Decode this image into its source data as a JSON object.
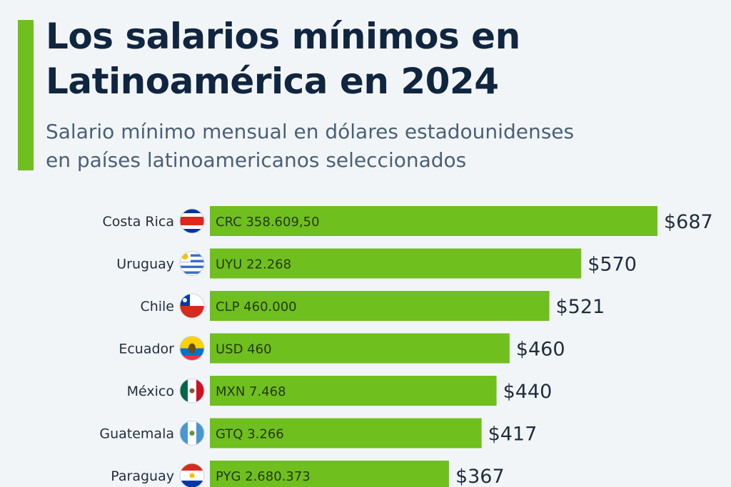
{
  "header": {
    "title_line1": "Los salarios mínimos en",
    "title_line2": "Latinoamérica en 2024",
    "subtitle_line1": "Salario mínimo mensual en dólares estadounidenses",
    "subtitle_line2": "en países latinoamericanos seleccionados"
  },
  "colors": {
    "bar": "#6fbf1f",
    "accent": "#6fbf1f",
    "title": "#10253f",
    "text": "#1f2d3d"
  },
  "chart_data": {
    "type": "bar",
    "orientation": "horizontal",
    "title": "Los salarios mínimos en Latinoamérica en 2024",
    "subtitle": "Salario mínimo mensual en dólares estadounidenses en países latinoamericanos seleccionados",
    "xlabel": "",
    "ylabel": "",
    "xlim": [
      0,
      687
    ],
    "categories": [
      "Costa Rica",
      "Uruguay",
      "Chile",
      "Ecuador",
      "México",
      "Guatemala",
      "Paraguay"
    ],
    "values": [
      687,
      570,
      521,
      460,
      440,
      417,
      367
    ],
    "value_labels": [
      "$687",
      "$570",
      "$521",
      "$460",
      "$440",
      "$417",
      "$367"
    ],
    "local_currency_labels": [
      "CRC 358.609,50",
      "UYU 22.268",
      "CLP 460.000",
      "USD 460",
      "MXN 7.468",
      "GTQ 3.266",
      "PYG 2.680.373"
    ],
    "flags": [
      "costa-rica-flag-icon",
      "uruguay-flag-icon",
      "chile-flag-icon",
      "ecuador-flag-icon",
      "mexico-flag-icon",
      "guatemala-flag-icon",
      "paraguay-flag-icon"
    ],
    "grid": false,
    "legend": "none"
  }
}
